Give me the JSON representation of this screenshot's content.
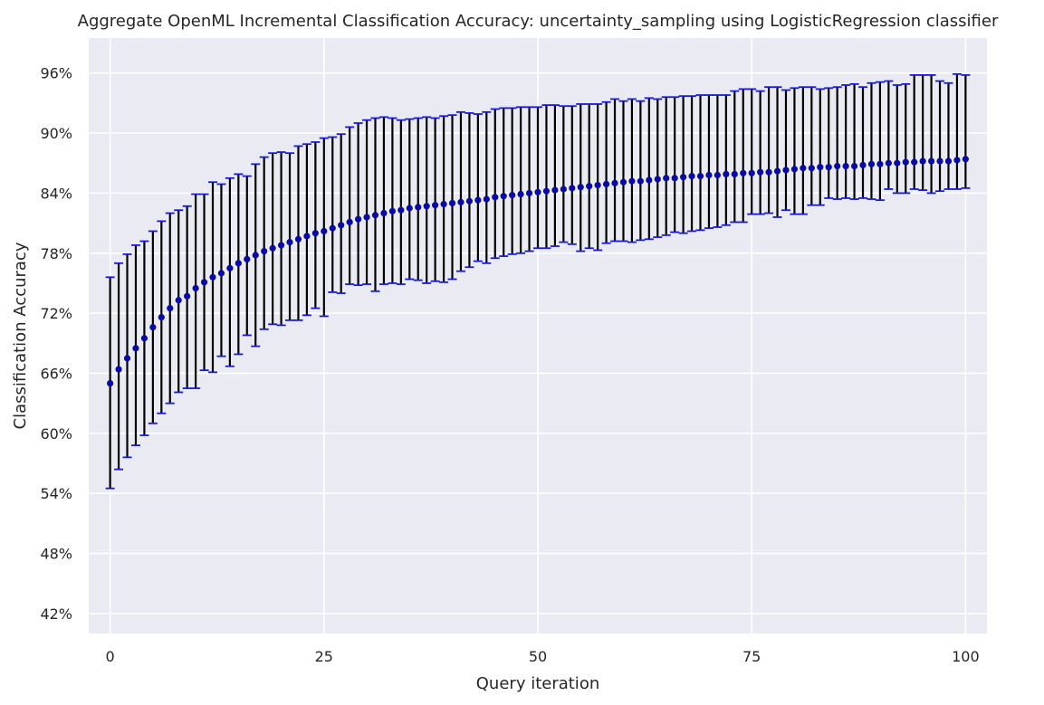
{
  "chart_data": {
    "type": "scatter",
    "title": "Aggregate OpenML Incremental Classification Accuracy: uncertainty_sampling using LogisticRegression classifier",
    "xlabel": "Query iteration",
    "ylabel": "Classification Accuracy",
    "xlim": [
      -2.5,
      102.5
    ],
    "ylim": [
      0.4,
      0.995
    ],
    "xticks": [
      0,
      25,
      50,
      75,
      100
    ],
    "yticks": [
      0.42,
      0.48,
      0.54,
      0.6,
      0.66,
      0.72,
      0.78,
      0.84,
      0.9,
      0.96
    ],
    "ytick_labels": [
      "42%",
      "48%",
      "54%",
      "60%",
      "66%",
      "72%",
      "78%",
      "84%",
      "90%",
      "96%"
    ],
    "grid": true,
    "colors": {
      "background": "#eaeaf2",
      "grid": "#ffffff",
      "marker": "#0a0aa0",
      "errorbar": "#000000",
      "cap": "#1a1ad6"
    },
    "series": [
      {
        "x": [
          0,
          1,
          2,
          3,
          4,
          5,
          6,
          7,
          8,
          9,
          10,
          11,
          12,
          13,
          14,
          15,
          16,
          17,
          18,
          19,
          20,
          21,
          22,
          23,
          24,
          25,
          26,
          27,
          28,
          29,
          30,
          31,
          32,
          33,
          34,
          35,
          36,
          37,
          38,
          39,
          40,
          41,
          42,
          43,
          44,
          45,
          46,
          47,
          48,
          49,
          50,
          51,
          52,
          53,
          54,
          55,
          56,
          57,
          58,
          59,
          60,
          61,
          62,
          63,
          64,
          65,
          66,
          67,
          68,
          69,
          70,
          71,
          72,
          73,
          74,
          75,
          76,
          77,
          78,
          79,
          80,
          81,
          82,
          83,
          84,
          85,
          86,
          87,
          88,
          89,
          90,
          91,
          92,
          93,
          94,
          95,
          96,
          97,
          98,
          99,
          100
        ],
        "y": [
          0.65,
          0.664,
          0.675,
          0.685,
          0.695,
          0.706,
          0.716,
          0.725,
          0.733,
          0.737,
          0.745,
          0.751,
          0.756,
          0.76,
          0.765,
          0.77,
          0.774,
          0.778,
          0.782,
          0.785,
          0.788,
          0.791,
          0.794,
          0.797,
          0.8,
          0.802,
          0.805,
          0.808,
          0.811,
          0.814,
          0.816,
          0.818,
          0.82,
          0.822,
          0.823,
          0.825,
          0.826,
          0.827,
          0.828,
          0.829,
          0.83,
          0.831,
          0.832,
          0.833,
          0.834,
          0.836,
          0.837,
          0.838,
          0.839,
          0.84,
          0.841,
          0.842,
          0.843,
          0.844,
          0.845,
          0.846,
          0.847,
          0.848,
          0.849,
          0.85,
          0.851,
          0.852,
          0.852,
          0.853,
          0.854,
          0.855,
          0.855,
          0.856,
          0.857,
          0.857,
          0.858,
          0.858,
          0.859,
          0.859,
          0.86,
          0.86,
          0.861,
          0.861,
          0.862,
          0.863,
          0.864,
          0.865,
          0.865,
          0.866,
          0.866,
          0.867,
          0.867,
          0.867,
          0.868,
          0.869,
          0.869,
          0.87,
          0.87,
          0.871,
          0.871,
          0.872,
          0.872,
          0.872,
          0.872,
          0.873,
          0.874
        ],
        "err_low": [
          0.545,
          0.564,
          0.576,
          0.588,
          0.598,
          0.61,
          0.62,
          0.63,
          0.641,
          0.645,
          0.645,
          0.663,
          0.661,
          0.677,
          0.667,
          0.679,
          0.698,
          0.687,
          0.704,
          0.709,
          0.708,
          0.713,
          0.713,
          0.718,
          0.725,
          0.717,
          0.741,
          0.74,
          0.749,
          0.748,
          0.749,
          0.742,
          0.749,
          0.75,
          0.749,
          0.754,
          0.753,
          0.75,
          0.752,
          0.751,
          0.754,
          0.762,
          0.766,
          0.772,
          0.77,
          0.775,
          0.777,
          0.779,
          0.78,
          0.782,
          0.785,
          0.785,
          0.787,
          0.791,
          0.789,
          0.782,
          0.785,
          0.783,
          0.79,
          0.792,
          0.792,
          0.791,
          0.793,
          0.794,
          0.796,
          0.798,
          0.801,
          0.8,
          0.802,
          0.803,
          0.805,
          0.806,
          0.808,
          0.811,
          0.811,
          0.819,
          0.819,
          0.82,
          0.816,
          0.823,
          0.819,
          0.819,
          0.828,
          0.828,
          0.835,
          0.834,
          0.835,
          0.834,
          0.835,
          0.834,
          0.833,
          0.844,
          0.84,
          0.84,
          0.844,
          0.843,
          0.84,
          0.842,
          0.844,
          0.844,
          0.845
        ],
        "err_high": [
          0.756,
          0.77,
          0.779,
          0.788,
          0.792,
          0.802,
          0.812,
          0.82,
          0.823,
          0.827,
          0.839,
          0.839,
          0.851,
          0.849,
          0.855,
          0.859,
          0.857,
          0.869,
          0.876,
          0.88,
          0.881,
          0.88,
          0.887,
          0.889,
          0.891,
          0.895,
          0.896,
          0.899,
          0.906,
          0.91,
          0.913,
          0.915,
          0.916,
          0.915,
          0.913,
          0.914,
          0.915,
          0.916,
          0.915,
          0.917,
          0.918,
          0.921,
          0.92,
          0.919,
          0.921,
          0.924,
          0.925,
          0.925,
          0.926,
          0.926,
          0.926,
          0.928,
          0.928,
          0.927,
          0.927,
          0.929,
          0.929,
          0.929,
          0.931,
          0.934,
          0.932,
          0.934,
          0.932,
          0.935,
          0.934,
          0.936,
          0.936,
          0.937,
          0.937,
          0.938,
          0.938,
          0.938,
          0.938,
          0.942,
          0.944,
          0.944,
          0.942,
          0.946,
          0.946,
          0.943,
          0.945,
          0.946,
          0.946,
          0.944,
          0.945,
          0.946,
          0.948,
          0.949,
          0.946,
          0.95,
          0.951,
          0.952,
          0.948,
          0.949,
          0.958,
          0.958,
          0.958,
          0.952,
          0.95,
          0.959,
          0.958
        ]
      }
    ]
  }
}
